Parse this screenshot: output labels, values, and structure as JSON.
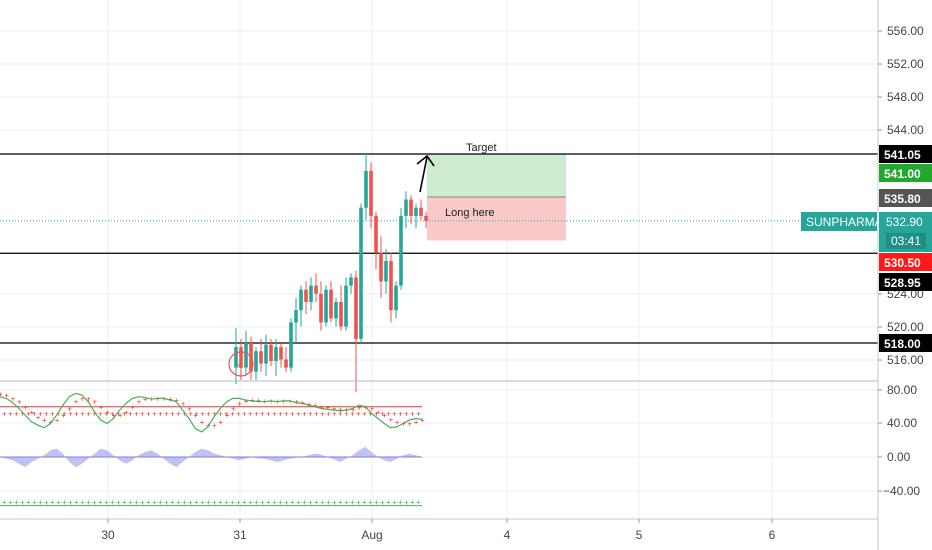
{
  "symbol": "SUNPHARMA",
  "colors": {
    "up": "#26a69a",
    "down": "#ef5350",
    "grid": "#e8eef3",
    "axis_text": "#444444",
    "hline": "#000000",
    "target_zone": "#cdeccf",
    "stop_zone": "#f9c9c9",
    "current_price_label": "#26a69a",
    "stoch_k": "#4caf50",
    "stoch_d": "#e53935",
    "area": "#b5b9f0"
  },
  "annotations": {
    "target": "Target",
    "entry": "Long here"
  },
  "price_labels": {
    "line_top": "541.05",
    "target": "541.00",
    "entry": "535.80",
    "current": "532.90",
    "countdown": "03:41",
    "stop": "530.50",
    "line_mid": "528.95",
    "line_low": "518.00"
  },
  "price_ticks": [
    "556.00",
    "552.00",
    "548.00",
    "544.00",
    "524.00",
    "520.00",
    "516.00"
  ],
  "osc_ticks": [
    "80.00",
    "40.00",
    "0.00",
    "−40.00"
  ],
  "time_ticks": [
    "30",
    "31",
    "Aug",
    "4",
    "5",
    "6"
  ],
  "chart_data": {
    "type": "candlestick",
    "symbol": "SUNPHARMA",
    "ylim": [
      512,
      558
    ],
    "osc_ylim": [
      -60,
      100
    ],
    "horizontal_lines": [
      541.05,
      528.95,
      518.0
    ],
    "long_position": {
      "target": 541.0,
      "entry": 535.8,
      "stop": 530.5
    },
    "current_price": 532.9,
    "candles": [
      {
        "o": 515.0,
        "h": 519.8,
        "l": 513.0,
        "c": 517.5
      },
      {
        "o": 517.5,
        "h": 518.5,
        "l": 513.5,
        "c": 515.0
      },
      {
        "o": 515.0,
        "h": 519.5,
        "l": 514.0,
        "c": 518.0
      },
      {
        "o": 518.0,
        "h": 518.8,
        "l": 513.5,
        "c": 514.5
      },
      {
        "o": 514.5,
        "h": 517.5,
        "l": 513.5,
        "c": 517.0
      },
      {
        "o": 517.0,
        "h": 518.5,
        "l": 514.5,
        "c": 515.5
      },
      {
        "o": 515.5,
        "h": 519.0,
        "l": 514.0,
        "c": 517.8
      },
      {
        "o": 517.8,
        "h": 518.5,
        "l": 515.2,
        "c": 515.8
      },
      {
        "o": 515.8,
        "h": 518.5,
        "l": 514.0,
        "c": 517.5
      },
      {
        "o": 517.5,
        "h": 518.0,
        "l": 515.0,
        "c": 516.0
      },
      {
        "o": 516.0,
        "h": 517.5,
        "l": 514.5,
        "c": 515.0
      },
      {
        "o": 515.0,
        "h": 521.0,
        "l": 514.5,
        "c": 520.5
      },
      {
        "o": 520.5,
        "h": 523.5,
        "l": 518.0,
        "c": 522.0
      },
      {
        "o": 522.0,
        "h": 525.0,
        "l": 520.0,
        "c": 524.5
      },
      {
        "o": 524.5,
        "h": 525.5,
        "l": 521.5,
        "c": 523.0
      },
      {
        "o": 523.0,
        "h": 526.0,
        "l": 522.0,
        "c": 525.0
      },
      {
        "o": 525.0,
        "h": 526.5,
        "l": 523.0,
        "c": 524.0
      },
      {
        "o": 524.0,
        "h": 525.5,
        "l": 519.5,
        "c": 520.5
      },
      {
        "o": 520.5,
        "h": 525.0,
        "l": 520.0,
        "c": 524.5
      },
      {
        "o": 524.5,
        "h": 525.5,
        "l": 520.5,
        "c": 521.0
      },
      {
        "o": 521.0,
        "h": 523.5,
        "l": 520.0,
        "c": 523.0
      },
      {
        "o": 523.0,
        "h": 525.0,
        "l": 519.5,
        "c": 520.0
      },
      {
        "o": 520.0,
        "h": 526.0,
        "l": 519.5,
        "c": 525.0
      },
      {
        "o": 525.0,
        "h": 526.5,
        "l": 524.0,
        "c": 526.0
      },
      {
        "o": 526.0,
        "h": 526.8,
        "l": 512.0,
        "c": 518.5
      },
      {
        "o": 518.5,
        "h": 535.0,
        "l": 518.0,
        "c": 534.5
      },
      {
        "o": 534.5,
        "h": 541.2,
        "l": 533.0,
        "c": 539.0
      },
      {
        "o": 539.0,
        "h": 540.0,
        "l": 532.0,
        "c": 533.5
      },
      {
        "o": 533.5,
        "h": 534.0,
        "l": 527.0,
        "c": 529.0
      },
      {
        "o": 529.0,
        "h": 531.0,
        "l": 523.5,
        "c": 525.5
      },
      {
        "o": 525.5,
        "h": 529.5,
        "l": 524.0,
        "c": 528.0
      },
      {
        "o": 528.0,
        "h": 529.0,
        "l": 520.5,
        "c": 522.0
      },
      {
        "o": 522.0,
        "h": 525.5,
        "l": 521.0,
        "c": 525.0
      },
      {
        "o": 525.0,
        "h": 534.5,
        "l": 524.5,
        "c": 533.5
      },
      {
        "o": 533.5,
        "h": 536.5,
        "l": 532.0,
        "c": 535.5
      },
      {
        "o": 535.5,
        "h": 536.0,
        "l": 532.5,
        "c": 533.5
      },
      {
        "o": 533.5,
        "h": 535.0,
        "l": 532.0,
        "c": 534.5
      },
      {
        "o": 534.5,
        "h": 535.5,
        "l": 533.0,
        "c": 533.5
      },
      {
        "o": 533.5,
        "h": 534.0,
        "l": 532.0,
        "c": 532.9
      }
    ],
    "stoch_k": [
      72,
      70,
      65,
      58,
      50,
      42,
      38,
      35,
      40,
      50,
      62,
      72,
      76,
      74,
      66,
      54,
      44,
      40,
      46,
      56,
      64,
      70,
      72,
      71,
      69,
      70,
      70,
      68,
      66,
      56,
      46,
      34,
      30,
      36,
      48,
      58,
      66,
      70,
      70,
      68,
      67,
      66,
      66,
      67,
      66,
      67,
      67,
      65,
      64,
      62,
      60,
      58,
      57,
      56,
      55,
      56,
      58,
      62,
      60,
      52,
      46,
      40,
      35,
      36,
      40,
      44,
      46,
      45
    ],
    "stoch_d": [
      75,
      74,
      70,
      66,
      60,
      54,
      48,
      44,
      42,
      44,
      50,
      58,
      66,
      70,
      70,
      66,
      60,
      54,
      50,
      50,
      54,
      60,
      66,
      69,
      70,
      70,
      70,
      69,
      68,
      64,
      58,
      50,
      42,
      38,
      38,
      42,
      50,
      58,
      64,
      67,
      68,
      68,
      67,
      67,
      67,
      67,
      67,
      66,
      65,
      63,
      62,
      60,
      59,
      58,
      57,
      57,
      57,
      59,
      60,
      58,
      54,
      50,
      45,
      42,
      40,
      40,
      42,
      44
    ],
    "area": [
      0,
      -2,
      -4,
      -8,
      -12,
      -6,
      -2,
      2,
      8,
      10,
      4,
      -6,
      -12,
      -8,
      -2,
      4,
      10,
      8,
      2,
      -4,
      -8,
      -4,
      2,
      6,
      8,
      4,
      -2,
      -8,
      -12,
      -6,
      0,
      6,
      10,
      8,
      4,
      2,
      0,
      -2,
      -4,
      -2,
      0,
      -2,
      -2,
      -4,
      -6,
      -4,
      -2,
      -1,
      0,
      2,
      4,
      3,
      0,
      -3,
      -6,
      -2,
      2,
      8,
      12,
      6,
      0,
      -4,
      -6,
      -2,
      2,
      4,
      2,
      0
    ]
  }
}
